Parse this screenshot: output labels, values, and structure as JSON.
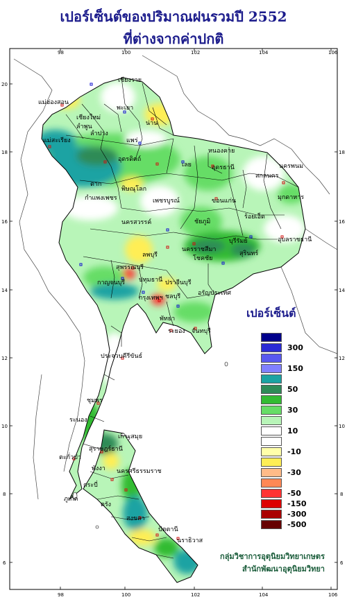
{
  "title_line1": "เปอร์เซ็นต์ของปริมาณฝนรวมปี  2552",
  "title_line2": "ที่ต่างจากค่าปกติ",
  "axes": {
    "x_ticks": [
      "98",
      "100",
      "102",
      "104",
      "106"
    ],
    "y_ticks": [
      "20",
      "18",
      "16",
      "14",
      "12",
      "10",
      "8",
      "6"
    ]
  },
  "legend": {
    "title": "เปอร์เซ็นต์",
    "items": [
      {
        "color": "#00008b",
        "label": ""
      },
      {
        "color": "#2a2ad6",
        "label": "300"
      },
      {
        "color": "#5858f0",
        "label": ""
      },
      {
        "color": "#8080ff",
        "label": "150"
      },
      {
        "color": "#1aa3a3",
        "label": ""
      },
      {
        "color": "#2e8b57",
        "label": "50"
      },
      {
        "color": "#33bb33",
        "label": ""
      },
      {
        "color": "#66dd66",
        "label": "30"
      },
      {
        "color": "#b8f5b8",
        "label": ""
      },
      {
        "color": "#ffffff",
        "label": "10"
      },
      {
        "color": "#ffffff",
        "label": ""
      },
      {
        "color": "#ffffaa",
        "label": "-10"
      },
      {
        "color": "#ffee55",
        "label": ""
      },
      {
        "color": "#ffbb88",
        "label": "-30"
      },
      {
        "color": "#ff8855",
        "label": ""
      },
      {
        "color": "#ff3333",
        "label": "-50"
      },
      {
        "color": "#dd0000",
        "label": "-150"
      },
      {
        "color": "#aa0000",
        "label": "-300"
      },
      {
        "color": "#660000",
        "label": "-500"
      }
    ]
  },
  "provinces": [
    {
      "name": "เชียงราย"
    },
    {
      "name": "แม่ฮ่องสอน"
    },
    {
      "name": "พะเยา"
    },
    {
      "name": "เชียงใหม่"
    },
    {
      "name": "ลำพูน"
    },
    {
      "name": "น่าน"
    },
    {
      "name": "ลำปาง"
    },
    {
      "name": "แพร่"
    },
    {
      "name": "แม่สะเรียง"
    },
    {
      "name": "อุตรดิตถ์"
    },
    {
      "name": "ตาก"
    },
    {
      "name": "พิษณุโลก"
    },
    {
      "name": "กำแพงเพชร"
    },
    {
      "name": "เพชรบูรณ์"
    },
    {
      "name": "นครสวรรค์"
    },
    {
      "name": "หนองคาย"
    },
    {
      "name": "อุดรธานี"
    },
    {
      "name": "นครพนม"
    },
    {
      "name": "สกลนคร"
    },
    {
      "name": "มุกดาหาร"
    },
    {
      "name": "เลย"
    },
    {
      "name": "ขอนแก่น"
    },
    {
      "name": "ชัยภูมิ"
    },
    {
      "name": "ร้อยเอ็ด"
    },
    {
      "name": "อุบลราชธานี"
    },
    {
      "name": "นครราชสีมา"
    },
    {
      "name": "โชคชัย"
    },
    {
      "name": "บุรีรัมย์"
    },
    {
      "name": "สุรินทร์"
    },
    {
      "name": "ลพบุรี"
    },
    {
      "name": "สุพรรณบุรี"
    },
    {
      "name": "กาญจนบุรี"
    },
    {
      "name": "ปทุมธานี"
    },
    {
      "name": "กรุงเทพฯ"
    },
    {
      "name": "ปราจีนบุรี"
    },
    {
      "name": "อรัญประเทศ"
    },
    {
      "name": "ชลบุรี"
    },
    {
      "name": "พัทยา"
    },
    {
      "name": "ระยอง"
    },
    {
      "name": "จันทบุรี"
    },
    {
      "name": "ประจวบคีรีขันธ์"
    },
    {
      "name": "ชุมพร"
    },
    {
      "name": "ระนอง"
    },
    {
      "name": "เกาะสมุย"
    },
    {
      "name": "สุราษฎร์ธานี"
    },
    {
      "name": "ตะกั่วป่า"
    },
    {
      "name": "พังงา"
    },
    {
      "name": "นครศรีธรรมราช"
    },
    {
      "name": "กระบี่"
    },
    {
      "name": "ภูเก็ต"
    },
    {
      "name": "ตรัง"
    },
    {
      "name": "สงขลา"
    },
    {
      "name": "ปัตตานี"
    },
    {
      "name": "นราธิวาส"
    }
  ],
  "credit_line1": "กลุ่มวิชาการอุตุนิยมวิทยาเกษตร",
  "credit_line2": "สำนักพัฒนาอุตุนิยมวิทยา"
}
